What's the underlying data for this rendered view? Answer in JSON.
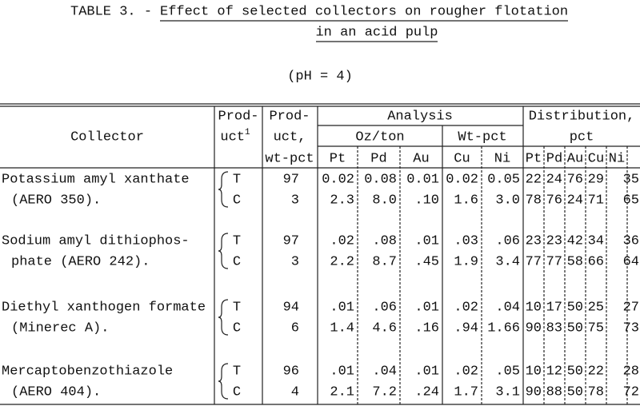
{
  "title": {
    "label": "TABLE 3. -",
    "line1": "Effect of selected collectors on rougher flotation",
    "line2": "in an acid pulp"
  },
  "subtitle": "(pH = 4)",
  "table": {
    "header": {
      "collector": "Collector",
      "product": [
        "Prod-",
        "uct"
      ],
      "product_note": "1",
      "product_wt": [
        "Prod-",
        "uct,",
        "wt-pct"
      ],
      "analysis": "Analysis",
      "oz_ton": "Oz/ton",
      "wt_pct": "Wt-pct",
      "analysis_cols": [
        "Pt",
        "Pd",
        "Au",
        "Cu",
        "Ni"
      ],
      "distribution": [
        "Distribution,",
        "pct"
      ],
      "distribution_cols": [
        "Pt",
        "Pd",
        "Au",
        "Cu",
        "Ni"
      ]
    },
    "rows": [
      {
        "collector": [
          "Potassium amyl xanthate",
          "(AERO 350)."
        ],
        "products": [
          {
            "product": "T",
            "wt_pct": "97",
            "analysis": [
              "0.02",
              "0.08",
              "0.01",
              "0.02",
              "0.05"
            ],
            "distribution": [
              "22",
              "24",
              "76",
              "29",
              "35"
            ]
          },
          {
            "product": "C",
            "wt_pct": "3",
            "analysis": [
              "2.3",
              "8.0",
              ".10",
              "1.6",
              "3.0"
            ],
            "distribution": [
              "78",
              "76",
              "24",
              "71",
              "65"
            ]
          }
        ]
      },
      {
        "collector": [
          "Sodium amyl dithiophos-",
          "phate (AERO 242)."
        ],
        "products": [
          {
            "product": "T",
            "wt_pct": "97",
            "analysis": [
              ".02",
              ".08",
              ".01",
              ".03",
              ".06"
            ],
            "distribution": [
              "23",
              "23",
              "42",
              "34",
              "36"
            ]
          },
          {
            "product": "C",
            "wt_pct": "3",
            "analysis": [
              "2.2",
              "8.7",
              ".45",
              "1.9",
              "3.4"
            ],
            "distribution": [
              "77",
              "77",
              "58",
              "66",
              "64"
            ]
          }
        ]
      },
      {
        "collector": [
          "Diethyl xanthogen formate",
          "(Minerec A)."
        ],
        "products": [
          {
            "product": "T",
            "wt_pct": "94",
            "analysis": [
              ".01",
              ".06",
              ".01",
              ".02",
              ".04"
            ],
            "distribution": [
              "10",
              "17",
              "50",
              "25",
              "27"
            ]
          },
          {
            "product": "C",
            "wt_pct": "6",
            "analysis": [
              "1.4",
              "4.6",
              ".16",
              ".94",
              "1.66"
            ],
            "distribution": [
              "90",
              "83",
              "50",
              "75",
              "73"
            ]
          }
        ]
      },
      {
        "collector": [
          "Mercaptobenzothiazole",
          "(AERO 404)."
        ],
        "products": [
          {
            "product": "T",
            "wt_pct": "96",
            "analysis": [
              ".01",
              ".04",
              ".01",
              ".02",
              ".05"
            ],
            "distribution": [
              "10",
              "12",
              "50",
              "22",
              "28"
            ]
          },
          {
            "product": "C",
            "wt_pct": "4",
            "analysis": [
              "2.1",
              "7.2",
              ".24",
              "1.7",
              "3.1"
            ],
            "distribution": [
              "90",
              "88",
              "50",
              "78",
              "72"
            ]
          }
        ]
      }
    ]
  }
}
